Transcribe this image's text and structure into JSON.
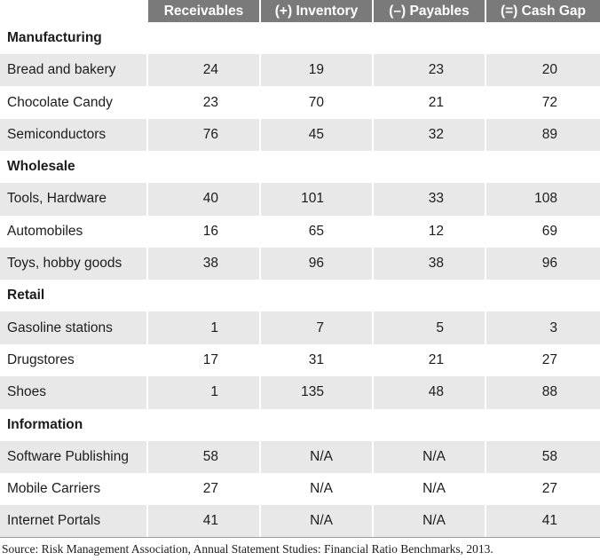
{
  "headers": [
    "",
    "Receivables",
    "(+) Inventory",
    "(–) Payables",
    "(=) Cash Gap"
  ],
  "sections": [
    {
      "name": "Manufacturing",
      "rows": [
        {
          "label": "Bread and bakery",
          "values": [
            "24",
            "19",
            "23",
            "20"
          ]
        },
        {
          "label": "Chocolate Candy",
          "values": [
            "23",
            "70",
            "21",
            "72"
          ]
        },
        {
          "label": "Semiconductors",
          "values": [
            "76",
            "45",
            "32",
            "89"
          ]
        }
      ]
    },
    {
      "name": "Wholesale",
      "rows": [
        {
          "label": "Tools, Hardware",
          "values": [
            "40",
            "101",
            "33",
            "108"
          ]
        },
        {
          "label": "Automobiles",
          "values": [
            "16",
            "65",
            "12",
            "69"
          ]
        },
        {
          "label": "Toys, hobby goods",
          "values": [
            "38",
            "96",
            "38",
            "96"
          ]
        }
      ]
    },
    {
      "name": "Retail",
      "rows": [
        {
          "label": "Gasoline stations",
          "values": [
            "1",
            "7",
            "5",
            "3"
          ]
        },
        {
          "label": "Drugstores",
          "values": [
            "17",
            "31",
            "21",
            "27"
          ]
        },
        {
          "label": "Shoes",
          "values": [
            "1",
            "135",
            "48",
            "88"
          ]
        }
      ]
    },
    {
      "name": "Information",
      "rows": [
        {
          "label": "Software Publishing",
          "values": [
            "58",
            "N/A",
            "N/A",
            "58"
          ]
        },
        {
          "label": "Mobile Carriers",
          "values": [
            "27",
            "N/A",
            "N/A",
            "27"
          ]
        },
        {
          "label": "Internet Portals",
          "values": [
            "41",
            "N/A",
            "N/A",
            "41"
          ]
        }
      ]
    }
  ],
  "source": "Source: Risk Management Association, Annual Statement Studies: Financial Ratio Benchmarks, 2013.",
  "colors": {
    "header_bg": "#7a7a7a",
    "row_shade": "#e8e8e8",
    "text": "#1c1c1c"
  }
}
